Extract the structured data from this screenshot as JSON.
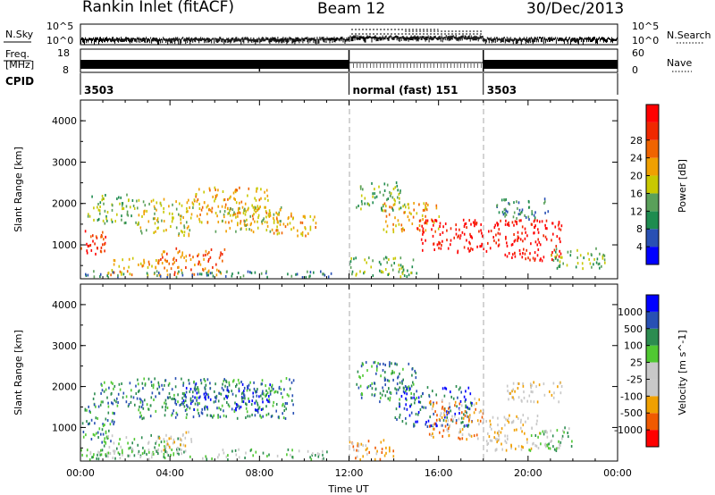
{
  "header": {
    "site": "Rankin Inlet (fitACF)",
    "beam": "Beam 12",
    "date": "30/Dec/2013"
  },
  "noise_panel": {
    "left_label": "N.Sky",
    "right_label": "N.Search",
    "left_ticks": [
      "10^5",
      "10^0"
    ],
    "right_ticks": [
      "10^5",
      "10^0"
    ]
  },
  "freq_panel": {
    "left_label_1": "Freq.",
    "left_label_2": "[MHz]",
    "left_ticks": [
      "18",
      "8"
    ],
    "right_label": "Nave",
    "right_ticks": [
      "60",
      "0"
    ]
  },
  "cpid_row": {
    "label": "CPID",
    "segments": [
      {
        "start_hour": 0,
        "end_hour": 12,
        "text": "3503"
      },
      {
        "start_hour": 12,
        "end_hour": 18,
        "text": "normal (fast) 151"
      },
      {
        "start_hour": 18,
        "end_hour": 24,
        "text": "3503"
      }
    ]
  },
  "chart_data": [
    {
      "type": "heatmap",
      "name": "power",
      "ylabel": "Slant Range [km]",
      "y_ticks": [
        "1000",
        "2000",
        "3000",
        "4000"
      ],
      "ylim": [
        180,
        4500
      ],
      "xlim_hours": [
        0,
        24
      ],
      "colorbar": {
        "label": "Power [dB]",
        "ticks": [
          "4",
          "8",
          "12",
          "16",
          "20",
          "24",
          "28"
        ],
        "colors": [
          "#0000ff",
          "#2850b4",
          "#1e8c50",
          "#5aa05a",
          "#c8c800",
          "#f0a000",
          "#f06400",
          "#f02800",
          "#ff0000"
        ]
      },
      "blobs": [
        {
          "t0": 0.0,
          "t1": 1.1,
          "r0": 700,
          "r1": 1400,
          "c": 7
        },
        {
          "t0": 0.3,
          "t1": 2.5,
          "r0": 1500,
          "r1": 2200,
          "c": 3
        },
        {
          "t0": 1.2,
          "t1": 3.5,
          "r0": 250,
          "r1": 700,
          "c": 5
        },
        {
          "t0": 2.5,
          "t1": 5.0,
          "r0": 1200,
          "r1": 2100,
          "c": 4
        },
        {
          "t0": 3.5,
          "t1": 6.5,
          "r0": 250,
          "r1": 900,
          "c": 6
        },
        {
          "t0": 5.0,
          "t1": 8.5,
          "r0": 1500,
          "r1": 2400,
          "c": 5
        },
        {
          "t0": 6.0,
          "t1": 9.5,
          "r0": 1300,
          "r1": 1900,
          "c": 4
        },
        {
          "t0": 8.5,
          "t1": 10.5,
          "r0": 1200,
          "r1": 1700,
          "c": 5
        },
        {
          "t0": 0.0,
          "t1": 11.5,
          "r0": 200,
          "r1": 350,
          "c": 2
        },
        {
          "t0": 12.3,
          "t1": 14.5,
          "r0": 1800,
          "r1": 2500,
          "c": 3
        },
        {
          "t0": 13.5,
          "t1": 16.0,
          "r0": 1300,
          "r1": 2000,
          "c": 5
        },
        {
          "t0": 15.0,
          "t1": 18.0,
          "r0": 800,
          "r1": 1600,
          "c": 8
        },
        {
          "t0": 18.1,
          "t1": 21.5,
          "r0": 600,
          "r1": 1600,
          "c": 8
        },
        {
          "t0": 12.0,
          "t1": 15.0,
          "r0": 200,
          "r1": 700,
          "c": 3
        },
        {
          "t0": 18.5,
          "t1": 21.0,
          "r0": 1600,
          "r1": 2100,
          "c": 2
        },
        {
          "t0": 21.0,
          "t1": 23.5,
          "r0": 400,
          "r1": 900,
          "c": 3
        }
      ]
    },
    {
      "type": "heatmap",
      "name": "velocity",
      "ylabel": "Slant Range [km]",
      "y_ticks": [
        "1000",
        "2000",
        "3000",
        "4000"
      ],
      "ylim": [
        180,
        4500
      ],
      "xlim_hours": [
        0,
        24
      ],
      "colorbar": {
        "label": "Velocity [m s^-1]",
        "ticks": [
          "-1000",
          "-500",
          "-100",
          "-25",
          "25",
          "100",
          "500",
          "1000"
        ],
        "colors": [
          "#ff0000",
          "#f05a00",
          "#f0a000",
          "#c8c8c8",
          "#c8c8c8",
          "#50c832",
          "#2c8c50",
          "#2850b4",
          "#0000ff"
        ]
      },
      "blobs": [
        {
          "t0": 0.0,
          "t1": 1.5,
          "r0": 600,
          "r1": 1500,
          "c": 6
        },
        {
          "t0": 0.5,
          "t1": 2.5,
          "r0": 1500,
          "r1": 2100,
          "c": 6
        },
        {
          "t0": 1.0,
          "t1": 4.5,
          "r0": 300,
          "r1": 800,
          "c": 5
        },
        {
          "t0": 3.5,
          "t1": 5.0,
          "r0": 400,
          "r1": 900,
          "c": 3
        },
        {
          "t0": 2.5,
          "t1": 9.5,
          "r0": 1200,
          "r1": 2200,
          "c": 6
        },
        {
          "t0": 4.5,
          "t1": 8.5,
          "r0": 1400,
          "r1": 2100,
          "c": 7
        },
        {
          "t0": 0.0,
          "t1": 11.0,
          "r0": 200,
          "r1": 450,
          "c": 5
        },
        {
          "t0": 12.3,
          "t1": 15.0,
          "r0": 1600,
          "r1": 2600,
          "c": 6
        },
        {
          "t0": 14.0,
          "t1": 17.5,
          "r0": 1000,
          "r1": 2000,
          "c": 7
        },
        {
          "t0": 15.5,
          "t1": 18.0,
          "r0": 700,
          "r1": 1700,
          "c": 2
        },
        {
          "t0": 18.1,
          "t1": 20.5,
          "r0": 400,
          "r1": 1300,
          "c": 3
        },
        {
          "t0": 20.0,
          "t1": 22.0,
          "r0": 400,
          "r1": 1000,
          "c": 5
        },
        {
          "t0": 19.0,
          "t1": 21.5,
          "r0": 1600,
          "r1": 2100,
          "c": 3
        },
        {
          "t0": 12.0,
          "t1": 14.0,
          "r0": 200,
          "r1": 700,
          "c": 2
        }
      ]
    }
  ],
  "x_axis": {
    "title": "Time UT",
    "ticks": [
      "00:00",
      "04:00",
      "08:00",
      "12:00",
      "16:00",
      "20:00",
      "00:00"
    ]
  }
}
